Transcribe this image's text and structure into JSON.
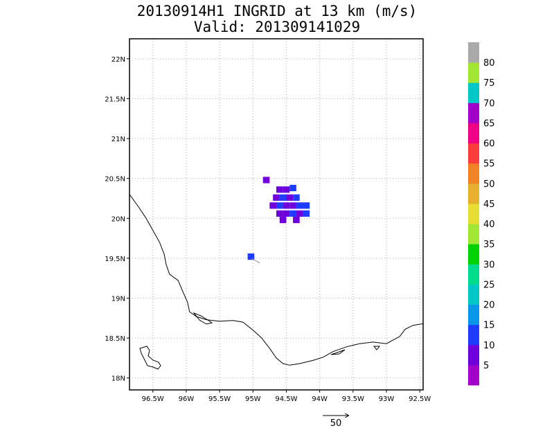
{
  "title_line1": "20130914H1 INGRID at 13 km (m/s)",
  "title_line2": "Valid: 201309141029",
  "lat_labels": [
    "22N",
    "21.5N",
    "21N",
    "20.5N",
    "20N",
    "19.5N",
    "19N",
    "18.5N",
    "18N"
  ],
  "lat_values": [
    22,
    21.5,
    21,
    20.5,
    20,
    19.5,
    19,
    18.5,
    18
  ],
  "lon_labels": [
    "96.5W",
    "96W",
    "95.5W",
    "95W",
    "94.5W",
    "94W",
    "93.5W",
    "93W",
    "92.5W"
  ],
  "lon_values": [
    -96.5,
    -96,
    -95.5,
    -95,
    -94.5,
    -94,
    -93.5,
    -93,
    -92.5
  ],
  "map_extent": {
    "lon_min": -96.85,
    "lon_max": -92.45,
    "lat_min": 17.85,
    "lat_max": 22.25
  },
  "colorbar": {
    "labels": [
      "5",
      "10",
      "15",
      "20",
      "25",
      "30",
      "35",
      "40",
      "45",
      "50",
      "55",
      "60",
      "65",
      "70",
      "75",
      "80"
    ],
    "colors": [
      "#a000c8",
      "#6e00dc",
      "#1e3cff",
      "#0a96e6",
      "#00c8c8",
      "#00dc8c",
      "#00d200",
      "#a0e632",
      "#e6dc32",
      "#e6af2d",
      "#f08228",
      "#fa3c3c",
      "#f00082",
      "#a000c8",
      "#00c8c8",
      "#a0e632",
      "#aaaaaa"
    ]
  },
  "reference_vector_label": "50",
  "coastline": [
    [
      -96.85,
      20.3
    ],
    [
      -96.72,
      20.15
    ],
    [
      -96.6,
      20.0
    ],
    [
      -96.5,
      19.85
    ],
    [
      -96.4,
      19.7
    ],
    [
      -96.33,
      19.55
    ],
    [
      -96.3,
      19.42
    ],
    [
      -96.25,
      19.3
    ],
    [
      -96.12,
      19.22
    ],
    [
      -96.05,
      19.08
    ],
    [
      -95.98,
      18.95
    ],
    [
      -95.95,
      18.83
    ],
    [
      -95.85,
      18.77
    ],
    [
      -95.7,
      18.73
    ],
    [
      -95.5,
      18.71
    ],
    [
      -95.3,
      18.72
    ],
    [
      -95.15,
      18.7
    ],
    [
      -95.0,
      18.6
    ],
    [
      -94.87,
      18.5
    ],
    [
      -94.75,
      18.37
    ],
    [
      -94.65,
      18.25
    ],
    [
      -94.55,
      18.18
    ],
    [
      -94.45,
      18.16
    ],
    [
      -94.3,
      18.18
    ],
    [
      -94.1,
      18.22
    ],
    [
      -93.95,
      18.26
    ],
    [
      -93.8,
      18.33
    ],
    [
      -93.6,
      18.39
    ],
    [
      -93.4,
      18.43
    ],
    [
      -93.2,
      18.45
    ],
    [
      -93.0,
      18.43
    ],
    [
      -92.8,
      18.52
    ],
    [
      -92.72,
      18.61
    ],
    [
      -92.6,
      18.66
    ],
    [
      -92.45,
      18.68
    ]
  ],
  "wind_cells": [
    {
      "lon": -94.8,
      "lat": 20.48,
      "v": 5
    },
    {
      "lon": -94.6,
      "lat": 20.36,
      "v": 5
    },
    {
      "lon": -94.5,
      "lat": 20.36,
      "v": 5
    },
    {
      "lon": -94.4,
      "lat": 20.38,
      "v": 10
    },
    {
      "lon": -94.65,
      "lat": 20.26,
      "v": 5
    },
    {
      "lon": -94.55,
      "lat": 20.26,
      "v": 10
    },
    {
      "lon": -94.45,
      "lat": 20.26,
      "v": 5
    },
    {
      "lon": -94.35,
      "lat": 20.26,
      "v": 10
    },
    {
      "lon": -94.7,
      "lat": 20.16,
      "v": 5
    },
    {
      "lon": -94.6,
      "lat": 20.16,
      "v": 10
    },
    {
      "lon": -94.5,
      "lat": 20.16,
      "v": 5
    },
    {
      "lon": -94.4,
      "lat": 20.16,
      "v": 5
    },
    {
      "lon": -94.3,
      "lat": 20.16,
      "v": 10
    },
    {
      "lon": -94.2,
      "lat": 20.16,
      "v": 10
    },
    {
      "lon": -94.6,
      "lat": 20.06,
      "v": 5
    },
    {
      "lon": -94.5,
      "lat": 20.06,
      "v": 5
    },
    {
      "lon": -94.4,
      "lat": 20.06,
      "v": 10
    },
    {
      "lon": -94.3,
      "lat": 20.06,
      "v": 5
    },
    {
      "lon": -94.2,
      "lat": 20.06,
      "v": 10
    },
    {
      "lon": -94.55,
      "lat": 19.98,
      "v": 5
    },
    {
      "lon": -94.35,
      "lat": 19.98,
      "v": 5
    },
    {
      "lon": -95.03,
      "lat": 19.52,
      "v": 10
    }
  ]
}
